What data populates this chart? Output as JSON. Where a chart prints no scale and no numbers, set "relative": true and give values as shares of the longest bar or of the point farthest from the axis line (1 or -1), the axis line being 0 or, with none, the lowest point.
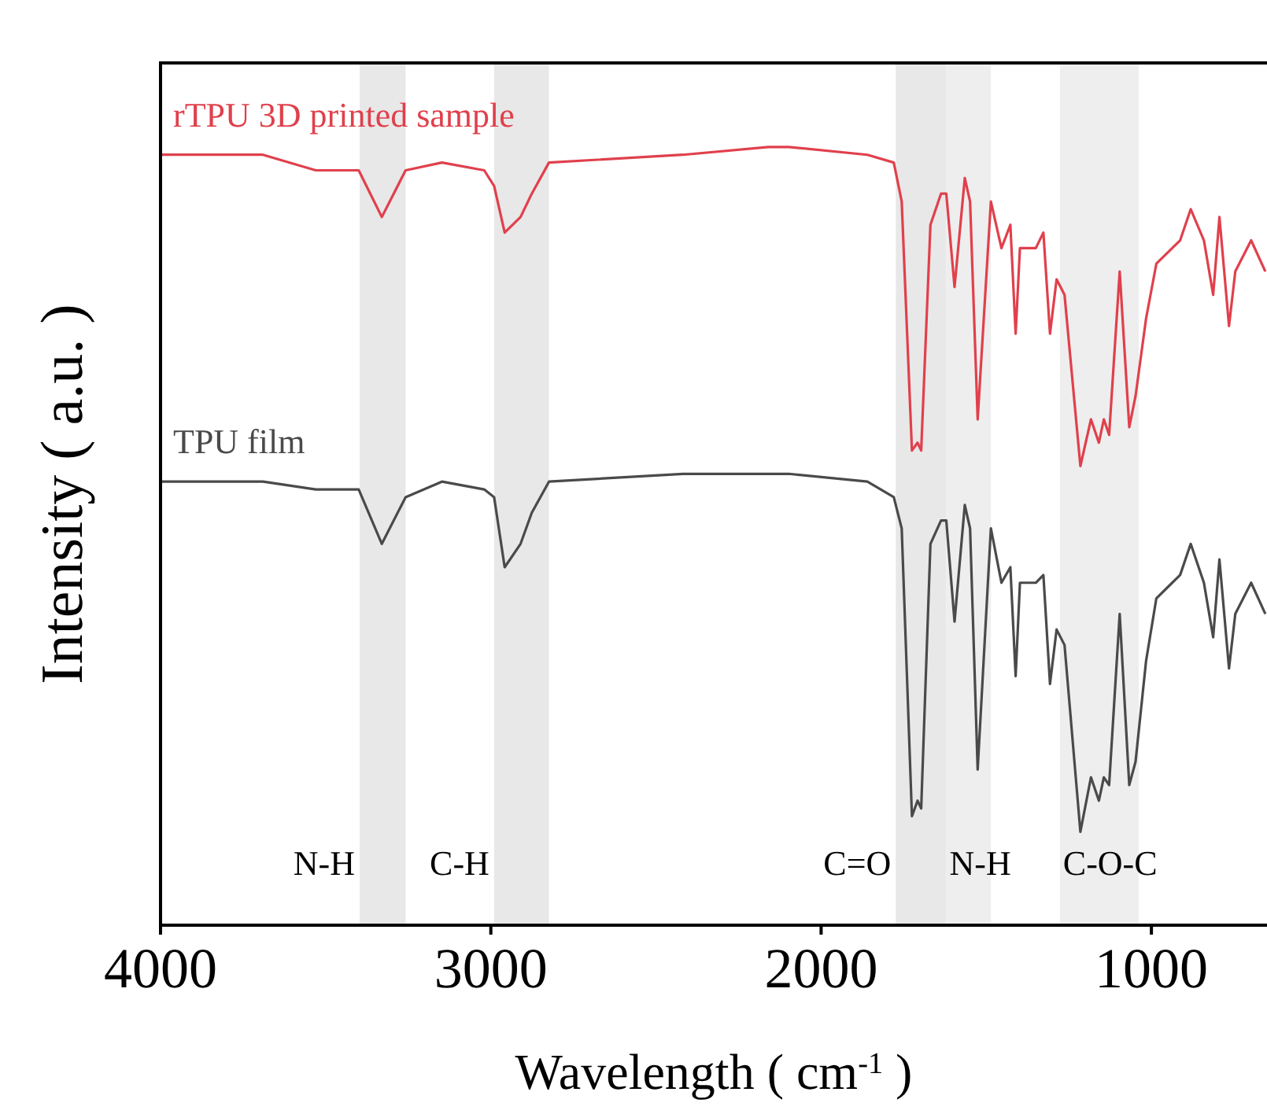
{
  "chart_data": {
    "type": "line",
    "relative": true,
    "xlabel": "Wavelength ( cm$^{-1}$ )",
    "ylabel": "Intensity ( a.u. )",
    "xlim": [
      4000,
      650
    ],
    "xticks": [
      4000,
      3000,
      2000,
      1000
    ],
    "marker": "none",
    "x": [
      4000,
      3690,
      3530,
      3400,
      3330,
      3258,
      3148,
      3020,
      2990,
      2958,
      2910,
      2876,
      2824,
      2418,
      2160,
      2098,
      1860,
      1780,
      1756,
      1725,
      1708,
      1697,
      1669,
      1637,
      1621,
      1596,
      1565,
      1549,
      1526,
      1486,
      1454,
      1427,
      1411,
      1398,
      1350,
      1327,
      1307,
      1287,
      1263,
      1215,
      1183,
      1159,
      1144,
      1128,
      1096,
      1067,
      1048,
      1016,
      985,
      937,
      913,
      881,
      841,
      813,
      794,
      765,
      746,
      698,
      655
    ],
    "series": [
      {
        "name": "rTPU 3D printed sample",
        "color": "#e0404c",
        "values": [
          0.99,
          0.99,
          0.97,
          0.97,
          0.91,
          0.97,
          0.98,
          0.97,
          0.95,
          0.89,
          0.91,
          0.94,
          0.98,
          0.99,
          1.0,
          1.0,
          0.99,
          0.98,
          0.93,
          0.61,
          0.62,
          0.61,
          0.9,
          0.94,
          0.94,
          0.82,
          0.96,
          0.93,
          0.65,
          0.93,
          0.87,
          0.9,
          0.76,
          0.87,
          0.87,
          0.89,
          0.76,
          0.83,
          0.81,
          0.59,
          0.65,
          0.62,
          0.65,
          0.63,
          0.84,
          0.64,
          0.68,
          0.78,
          0.85,
          0.87,
          0.88,
          0.92,
          0.88,
          0.81,
          0.91,
          0.77,
          0.84,
          0.88,
          0.84
        ]
      },
      {
        "name": "TPU film",
        "color": "#4a4a4a",
        "values": [
          0.57,
          0.57,
          0.56,
          0.56,
          0.49,
          0.55,
          0.57,
          0.56,
          0.55,
          0.46,
          0.49,
          0.53,
          0.57,
          0.58,
          0.58,
          0.58,
          0.57,
          0.55,
          0.51,
          0.14,
          0.16,
          0.15,
          0.49,
          0.52,
          0.52,
          0.39,
          0.54,
          0.51,
          0.2,
          0.51,
          0.44,
          0.46,
          0.32,
          0.44,
          0.44,
          0.45,
          0.31,
          0.38,
          0.36,
          0.12,
          0.19,
          0.16,
          0.19,
          0.18,
          0.4,
          0.18,
          0.21,
          0.34,
          0.42,
          0.44,
          0.45,
          0.49,
          0.44,
          0.37,
          0.47,
          0.33,
          0.4,
          0.44,
          0.4
        ]
      }
    ],
    "bands": [
      {
        "axis": "x",
        "from": 3397,
        "to": 3258,
        "color": "#e8e8e8",
        "label": "N-H"
      },
      {
        "axis": "x",
        "from": 2990,
        "to": 2824,
        "color": "#e8e8e8",
        "label": "C-H"
      },
      {
        "axis": "x",
        "from": 1774,
        "to": 1621,
        "color": "#e8e8e8",
        "label": "C=O"
      },
      {
        "axis": "x",
        "from": 1621,
        "to": 1486,
        "color": "#eeeeee",
        "label": "N-H"
      },
      {
        "axis": "x",
        "from": 1277,
        "to": 1038,
        "color": "#eeeeee",
        "label": "C-O-C"
      }
    ]
  }
}
